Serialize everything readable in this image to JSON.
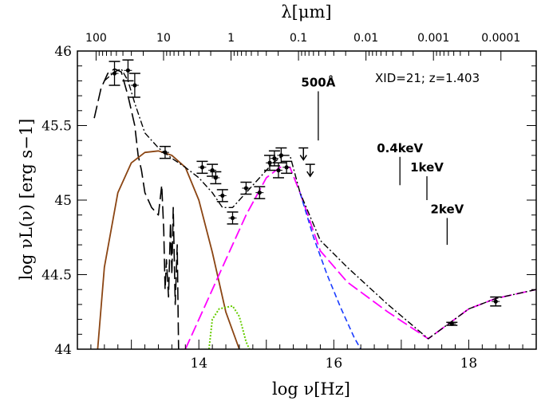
{
  "chart_data": {
    "type": "line",
    "title": "",
    "info_label": "XID=21;  z=1.403",
    "xlabel": "log  ν[Hz]",
    "ylabel": "log  νL(ν)  [erg s−1]",
    "top_axis_label": "λ[μm]",
    "xlim": [
      12.2,
      19.0
    ],
    "ylim": [
      44.0,
      46.0
    ],
    "x_ticks": [
      "14",
      "16",
      "18"
    ],
    "y_ticks": [
      "44",
      "44.5",
      "45",
      "45.5",
      "46"
    ],
    "top_ticks": [
      "100",
      "10",
      "1",
      "0.1",
      "0.01",
      "0.001",
      "0.0001"
    ],
    "top_tick_logfreq": [
      12.4768,
      13.4768,
      14.4768,
      15.4768,
      16.4768,
      17.4768,
      18.4768
    ],
    "colors": {
      "total_model": "#000000",
      "torus": "#000000",
      "starburst": "#8B4513",
      "host_stars": "#66cc00",
      "agn_disk": "#ff00ff",
      "agn_disk_alt": "#1a3cff"
    },
    "series": [
      {
        "key": "torus",
        "x": [
          12.45,
          12.55,
          12.65,
          12.75,
          12.85,
          12.95,
          13.05,
          13.1,
          13.15,
          13.2,
          13.3,
          13.4,
          13.45,
          13.48,
          13.5,
          13.52,
          13.55,
          13.58,
          13.6,
          13.62,
          13.65,
          13.68,
          13.7
        ],
        "y": [
          45.55,
          45.75,
          45.85,
          45.88,
          45.86,
          45.7,
          45.5,
          45.3,
          45.2,
          45.05,
          44.95,
          44.9,
          45.1,
          44.8,
          44.4,
          44.6,
          44.35,
          44.85,
          44.5,
          44.95,
          44.3,
          44.7,
          44.0
        ]
      },
      {
        "key": "starburst",
        "x": [
          12.5,
          12.6,
          12.8,
          13.0,
          13.2,
          13.4,
          13.6,
          13.8,
          14.0,
          14.2,
          14.4,
          14.6,
          14.8
        ],
        "y": [
          44.0,
          44.55,
          45.05,
          45.25,
          45.32,
          45.33,
          45.3,
          45.22,
          45.0,
          44.65,
          44.25,
          44.0,
          43.7
        ]
      },
      {
        "key": "host_stars",
        "x": [
          14.15,
          14.2,
          14.3,
          14.4,
          14.5,
          14.6,
          14.7,
          14.75
        ],
        "y": [
          44.0,
          44.2,
          44.27,
          44.28,
          44.29,
          44.22,
          44.05,
          44.0
        ]
      },
      {
        "key": "agn_disk",
        "x": [
          13.8,
          14.1,
          14.4,
          14.7,
          15.0,
          15.2,
          15.35,
          15.5,
          15.8,
          16.2,
          16.8,
          17.4,
          17.7,
          18.0,
          18.4,
          18.8,
          19.0
        ],
        "y": [
          44.0,
          44.3,
          44.6,
          44.9,
          45.15,
          45.22,
          45.22,
          45.05,
          44.66,
          44.45,
          44.25,
          44.07,
          44.17,
          44.27,
          44.34,
          44.38,
          44.4
        ]
      },
      {
        "key": "agn_disk_alt",
        "x": [
          15.5,
          15.7,
          15.9,
          16.1,
          16.3,
          16.4
        ],
        "y": [
          45.05,
          44.75,
          44.5,
          44.28,
          44.08,
          44.0
        ]
      },
      {
        "key": "total_model",
        "x": [
          12.6,
          12.75,
          12.85,
          12.95,
          13.05,
          13.2,
          13.4,
          13.6,
          13.8,
          14.0,
          14.2,
          14.35,
          14.5,
          14.7,
          14.9,
          15.1,
          15.25,
          15.35,
          15.5,
          15.8,
          16.2,
          16.8,
          17.4,
          17.7,
          18.0,
          18.4,
          18.8,
          19.0
        ],
        "y": [
          45.8,
          45.86,
          45.88,
          45.8,
          45.65,
          45.45,
          45.35,
          45.28,
          45.22,
          45.15,
          45.05,
          44.95,
          44.95,
          45.05,
          45.15,
          45.25,
          45.3,
          45.3,
          45.05,
          44.73,
          44.55,
          44.3,
          44.07,
          44.17,
          44.27,
          44.34,
          44.38,
          44.4
        ]
      }
    ],
    "data_points": {
      "x": [
        12.75,
        12.95,
        13.05,
        13.5,
        14.05,
        14.2,
        14.25,
        14.35,
        14.5,
        14.7,
        14.9,
        15.05,
        15.12,
        15.18,
        15.22,
        15.3,
        17.75,
        18.4
      ],
      "y": [
        45.85,
        45.87,
        45.77,
        45.32,
        45.22,
        45.2,
        45.15,
        45.03,
        44.88,
        45.08,
        45.05,
        45.25,
        45.28,
        45.2,
        45.3,
        45.22,
        44.17,
        44.32
      ],
      "err": [
        0.08,
        0.07,
        0.08,
        0.04,
        0.04,
        0.04,
        0.04,
        0.04,
        0.04,
        0.04,
        0.04,
        0.05,
        0.05,
        0.05,
        0.05,
        0.04,
        0.01,
        0.03
      ]
    },
    "upper_limits": {
      "x": [
        15.55,
        15.65
      ],
      "y": [
        45.35,
        45.24
      ]
    },
    "annotations": [
      {
        "text": "500Å",
        "x": 15.77,
        "y_top": 45.73,
        "y_bottom": 45.4
      },
      {
        "text": "0.4keV",
        "x": 16.98,
        "y_top": 45.29,
        "y_bottom": 45.1
      },
      {
        "text": "1keV",
        "x": 17.38,
        "y_top": 45.16,
        "y_bottom": 45.0
      },
      {
        "text": "2keV",
        "x": 17.68,
        "y_top": 44.88,
        "y_bottom": 44.7
      }
    ]
  }
}
